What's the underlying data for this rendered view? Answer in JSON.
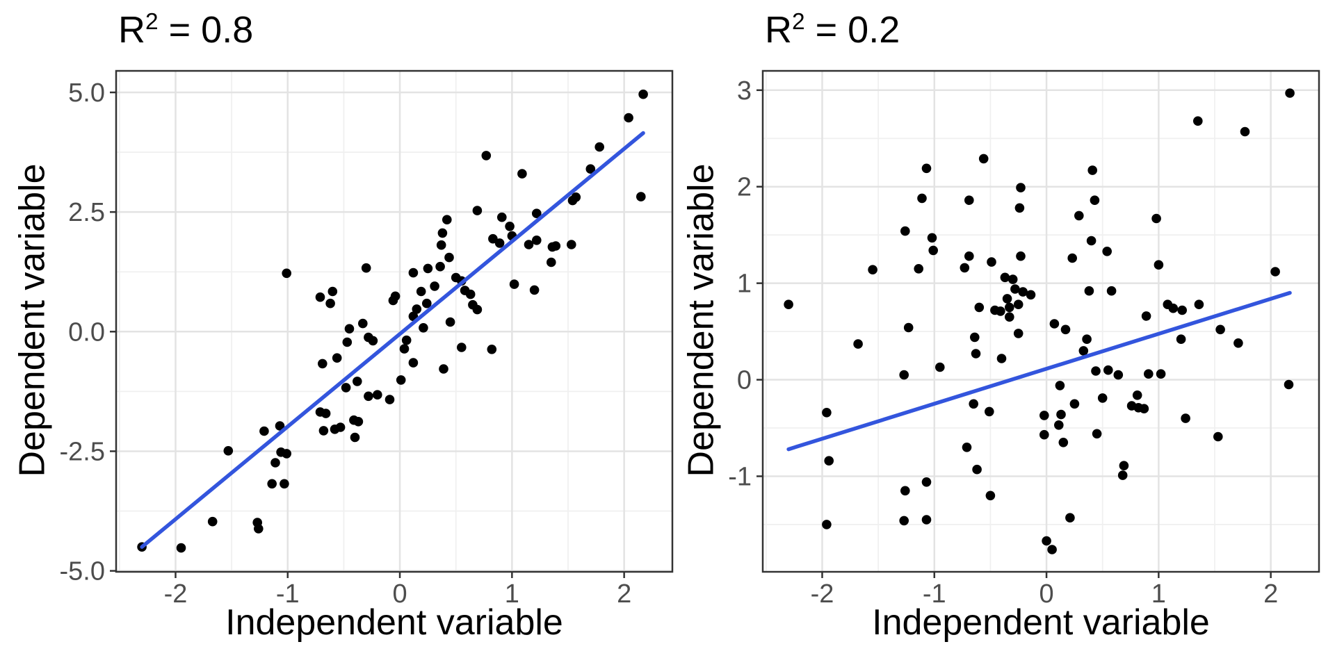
{
  "figure": {
    "background": "#FFFFFF",
    "panel_border_color": "#333333",
    "grid_major_color": "#E3E3E3",
    "grid_minor_color": "#F0F0F0",
    "tick_color": "#333333",
    "tick_label_color": "#4D4D4D"
  },
  "chart_data": [
    {
      "type": "scatter",
      "title": {
        "base": "R",
        "sup": "2",
        "rest": " = 0.8"
      },
      "xlabel": "Independent variable",
      "ylabel": "Dependent variable",
      "xlim": [
        -2.53,
        2.43
      ],
      "ylim": [
        -5.02,
        5.45
      ],
      "x_tick_values": [
        -2,
        -1,
        0,
        1,
        2
      ],
      "x_tick_labels": [
        "-2",
        "-1",
        "0",
        "1",
        "2"
      ],
      "y_tick_values": [
        5.0,
        2.5,
        0.0,
        -2.5,
        -5.0
      ],
      "y_tick_labels": [
        "5.0",
        "2.5",
        "0.0",
        "-2.5",
        "-5.0"
      ],
      "grid": "major+minor",
      "legend": "none",
      "point_color": "#000000",
      "trend_line": {
        "x1": -2.3,
        "y1": -4.5,
        "x2": 2.17,
        "y2": 4.15,
        "color": "#3355DD"
      },
      "points": [
        [
          -1.01,
          1.22
        ],
        [
          -0.71,
          0.72
        ],
        [
          -0.6,
          0.84
        ],
        [
          -0.62,
          0.59
        ],
        [
          0.77,
          3.68
        ],
        [
          1.09,
          3.3
        ],
        [
          0.69,
          2.53
        ],
        [
          0.42,
          2.34
        ],
        [
          0.91,
          2.39
        ],
        [
          0.98,
          2.2
        ],
        [
          0.38,
          2.06
        ],
        [
          0.37,
          1.81
        ],
        [
          0.83,
          1.94
        ],
        [
          0.89,
          1.85
        ],
        [
          1.0,
          2.0
        ],
        [
          1.15,
          1.82
        ],
        [
          1.22,
          1.91
        ],
        [
          1.22,
          2.47
        ],
        [
          1.36,
          1.77
        ],
        [
          1.35,
          1.45
        ],
        [
          0.44,
          1.55
        ],
        [
          -0.3,
          1.33
        ],
        [
          0.12,
          1.23
        ],
        [
          0.25,
          1.32
        ],
        [
          0.36,
          1.36
        ],
        [
          0.5,
          1.13
        ],
        [
          0.55,
          1.06
        ],
        [
          0.31,
          0.95
        ],
        [
          0.19,
          0.84
        ],
        [
          -0.04,
          0.74
        ],
        [
          -0.06,
          0.65
        ],
        [
          0.24,
          0.59
        ],
        [
          0.15,
          0.47
        ],
        [
          0.12,
          0.32
        ],
        [
          0.45,
          0.2
        ],
        [
          0.58,
          0.86
        ],
        [
          0.63,
          0.78
        ],
        [
          0.69,
          0.46
        ],
        [
          0.65,
          0.56
        ],
        [
          1.02,
          0.99
        ],
        [
          1.2,
          0.87
        ],
        [
          2.17,
          4.96
        ],
        [
          2.04,
          4.47
        ],
        [
          1.78,
          3.86
        ],
        [
          1.7,
          3.4
        ],
        [
          1.57,
          2.81
        ],
        [
          1.54,
          2.74
        ],
        [
          2.15,
          2.82
        ],
        [
          1.53,
          1.82
        ],
        [
          1.39,
          1.79
        ],
        [
          -2.3,
          -4.5
        ],
        [
          -1.95,
          -4.52
        ],
        [
          -1.67,
          -3.97
        ],
        [
          -1.27,
          -3.99
        ],
        [
          -1.26,
          -4.12
        ],
        [
          -1.53,
          -2.49
        ],
        [
          -1.21,
          -2.08
        ],
        [
          -1.07,
          -1.97
        ],
        [
          -1.06,
          -2.52
        ],
        [
          -1.01,
          -2.55
        ],
        [
          -1.11,
          -2.74
        ],
        [
          -1.14,
          -3.18
        ],
        [
          -1.03,
          -3.18
        ],
        [
          -0.69,
          -0.67
        ],
        [
          -0.56,
          -0.55
        ],
        [
          -0.47,
          -0.22
        ],
        [
          -0.45,
          0.06
        ],
        [
          -0.33,
          0.17
        ],
        [
          -0.28,
          -0.12
        ],
        [
          -0.24,
          -0.19
        ],
        [
          -0.48,
          -1.17
        ],
        [
          -0.38,
          -1.04
        ],
        [
          -0.71,
          -1.68
        ],
        [
          -0.66,
          -1.71
        ],
        [
          -0.58,
          -2.04
        ],
        [
          -0.53,
          -2.0
        ],
        [
          -0.68,
          -2.07
        ],
        [
          -0.41,
          -1.85
        ],
        [
          -0.37,
          -1.88
        ],
        [
          -0.4,
          -2.21
        ],
        [
          -0.28,
          -1.35
        ],
        [
          -0.2,
          -1.32
        ],
        [
          -0.09,
          -1.42
        ],
        [
          0.21,
          0.08
        ],
        [
          0.06,
          -0.18
        ],
        [
          0.04,
          -0.36
        ],
        [
          0.12,
          -0.65
        ],
        [
          0.55,
          -0.33
        ],
        [
          0.82,
          -0.37
        ],
        [
          0.39,
          -0.78
        ],
        [
          0.01,
          -1.01
        ]
      ]
    },
    {
      "type": "scatter",
      "title": {
        "base": "R",
        "sup": "2",
        "rest": " = 0.2"
      },
      "xlabel": "Independent variable",
      "ylabel": "Dependent variable",
      "xlim": [
        -2.53,
        2.43
      ],
      "ylim": [
        -1.99,
        3.2
      ],
      "x_tick_values": [
        -2,
        -1,
        0,
        1,
        2
      ],
      "x_tick_labels": [
        "-2",
        "-1",
        "0",
        "1",
        "2"
      ],
      "y_tick_values": [
        3,
        2,
        1,
        0,
        -1
      ],
      "y_tick_labels": [
        "3",
        "2",
        "1",
        "0",
        "-1"
      ],
      "grid": "major+minor",
      "legend": "none",
      "point_color": "#000000",
      "trend_line": {
        "x1": -2.3,
        "y1": -0.72,
        "x2": 2.17,
        "y2": 0.9,
        "color": "#3355DD"
      },
      "points": [
        [
          -0.56,
          2.29
        ],
        [
          -1.07,
          2.19
        ],
        [
          -1.11,
          1.88
        ],
        [
          -0.69,
          1.86
        ],
        [
          -0.23,
          1.99
        ],
        [
          -0.24,
          1.78
        ],
        [
          -1.26,
          1.54
        ],
        [
          -1.02,
          1.47
        ],
        [
          -1.01,
          1.34
        ],
        [
          -0.69,
          1.28
        ],
        [
          -0.23,
          1.28
        ],
        [
          -0.49,
          1.22
        ],
        [
          -0.73,
          1.16
        ],
        [
          -1.55,
          1.14
        ],
        [
          -1.14,
          1.15
        ],
        [
          -0.37,
          1.06
        ],
        [
          -0.3,
          1.04
        ],
        [
          -0.28,
          0.94
        ],
        [
          -0.21,
          0.91
        ],
        [
          -0.14,
          0.88
        ],
        [
          -2.3,
          0.78
        ],
        [
          -0.35,
          0.84
        ],
        [
          -0.25,
          0.78
        ],
        [
          -0.33,
          0.75
        ],
        [
          -0.6,
          0.75
        ],
        [
          -0.46,
          0.72
        ],
        [
          -0.41,
          0.71
        ],
        [
          -0.33,
          0.65
        ],
        [
          -1.23,
          0.54
        ],
        [
          -1.68,
          0.37
        ],
        [
          -0.64,
          0.44
        ],
        [
          -0.63,
          0.27
        ],
        [
          -0.4,
          0.22
        ],
        [
          -0.95,
          0.13
        ],
        [
          -1.27,
          0.05
        ],
        [
          -0.25,
          0.48
        ],
        [
          -1.96,
          -0.34
        ],
        [
          -0.65,
          -0.25
        ],
        [
          -0.51,
          -0.33
        ],
        [
          -0.71,
          -0.7
        ],
        [
          -0.62,
          -0.93
        ],
        [
          -0.5,
          -1.2
        ],
        [
          -1.26,
          -1.15
        ],
        [
          -1.07,
          -1.06
        ],
        [
          -1.94,
          -0.84
        ],
        [
          -1.07,
          -1.45
        ],
        [
          -1.27,
          -1.46
        ],
        [
          -1.96,
          -1.5
        ],
        [
          2.17,
          2.97
        ],
        [
          1.35,
          2.68
        ],
        [
          1.77,
          2.57
        ],
        [
          0.41,
          2.17
        ],
        [
          0.43,
          1.86
        ],
        [
          0.29,
          1.7
        ],
        [
          0.98,
          1.67
        ],
        [
          0.4,
          1.44
        ],
        [
          0.54,
          1.33
        ],
        [
          0.23,
          1.26
        ],
        [
          1.0,
          1.19
        ],
        [
          2.04,
          1.12
        ],
        [
          0.38,
          0.92
        ],
        [
          0.58,
          0.92
        ],
        [
          1.08,
          0.78
        ],
        [
          1.13,
          0.74
        ],
        [
          1.21,
          0.72
        ],
        [
          1.36,
          0.78
        ],
        [
          0.89,
          0.66
        ],
        [
          0.07,
          0.58
        ],
        [
          0.17,
          0.52
        ],
        [
          0.36,
          0.42
        ],
        [
          0.33,
          0.3
        ],
        [
          1.2,
          0.42
        ],
        [
          1.55,
          0.52
        ],
        [
          1.71,
          0.38
        ],
        [
          0.44,
          0.09
        ],
        [
          0.55,
          0.1
        ],
        [
          0.64,
          0.05
        ],
        [
          0.91,
          0.06
        ],
        [
          1.02,
          0.06
        ],
        [
          0.12,
          -0.06
        ],
        [
          2.16,
          -0.05
        ],
        [
          0.25,
          -0.25
        ],
        [
          0.5,
          -0.19
        ],
        [
          0.81,
          -0.16
        ],
        [
          0.76,
          -0.27
        ],
        [
          0.82,
          -0.29
        ],
        [
          0.87,
          -0.3
        ],
        [
          0.13,
          -0.36
        ],
        [
          -0.02,
          -0.37
        ],
        [
          0.11,
          -0.47
        ],
        [
          1.24,
          -0.4
        ],
        [
          -0.02,
          -0.57
        ],
        [
          0.45,
          -0.56
        ],
        [
          0.15,
          -0.65
        ],
        [
          1.53,
          -0.59
        ],
        [
          0.69,
          -0.89
        ],
        [
          0.68,
          -0.99
        ],
        [
          0.21,
          -1.43
        ],
        [
          0.0,
          -1.67
        ],
        [
          0.05,
          -1.76
        ]
      ]
    }
  ]
}
